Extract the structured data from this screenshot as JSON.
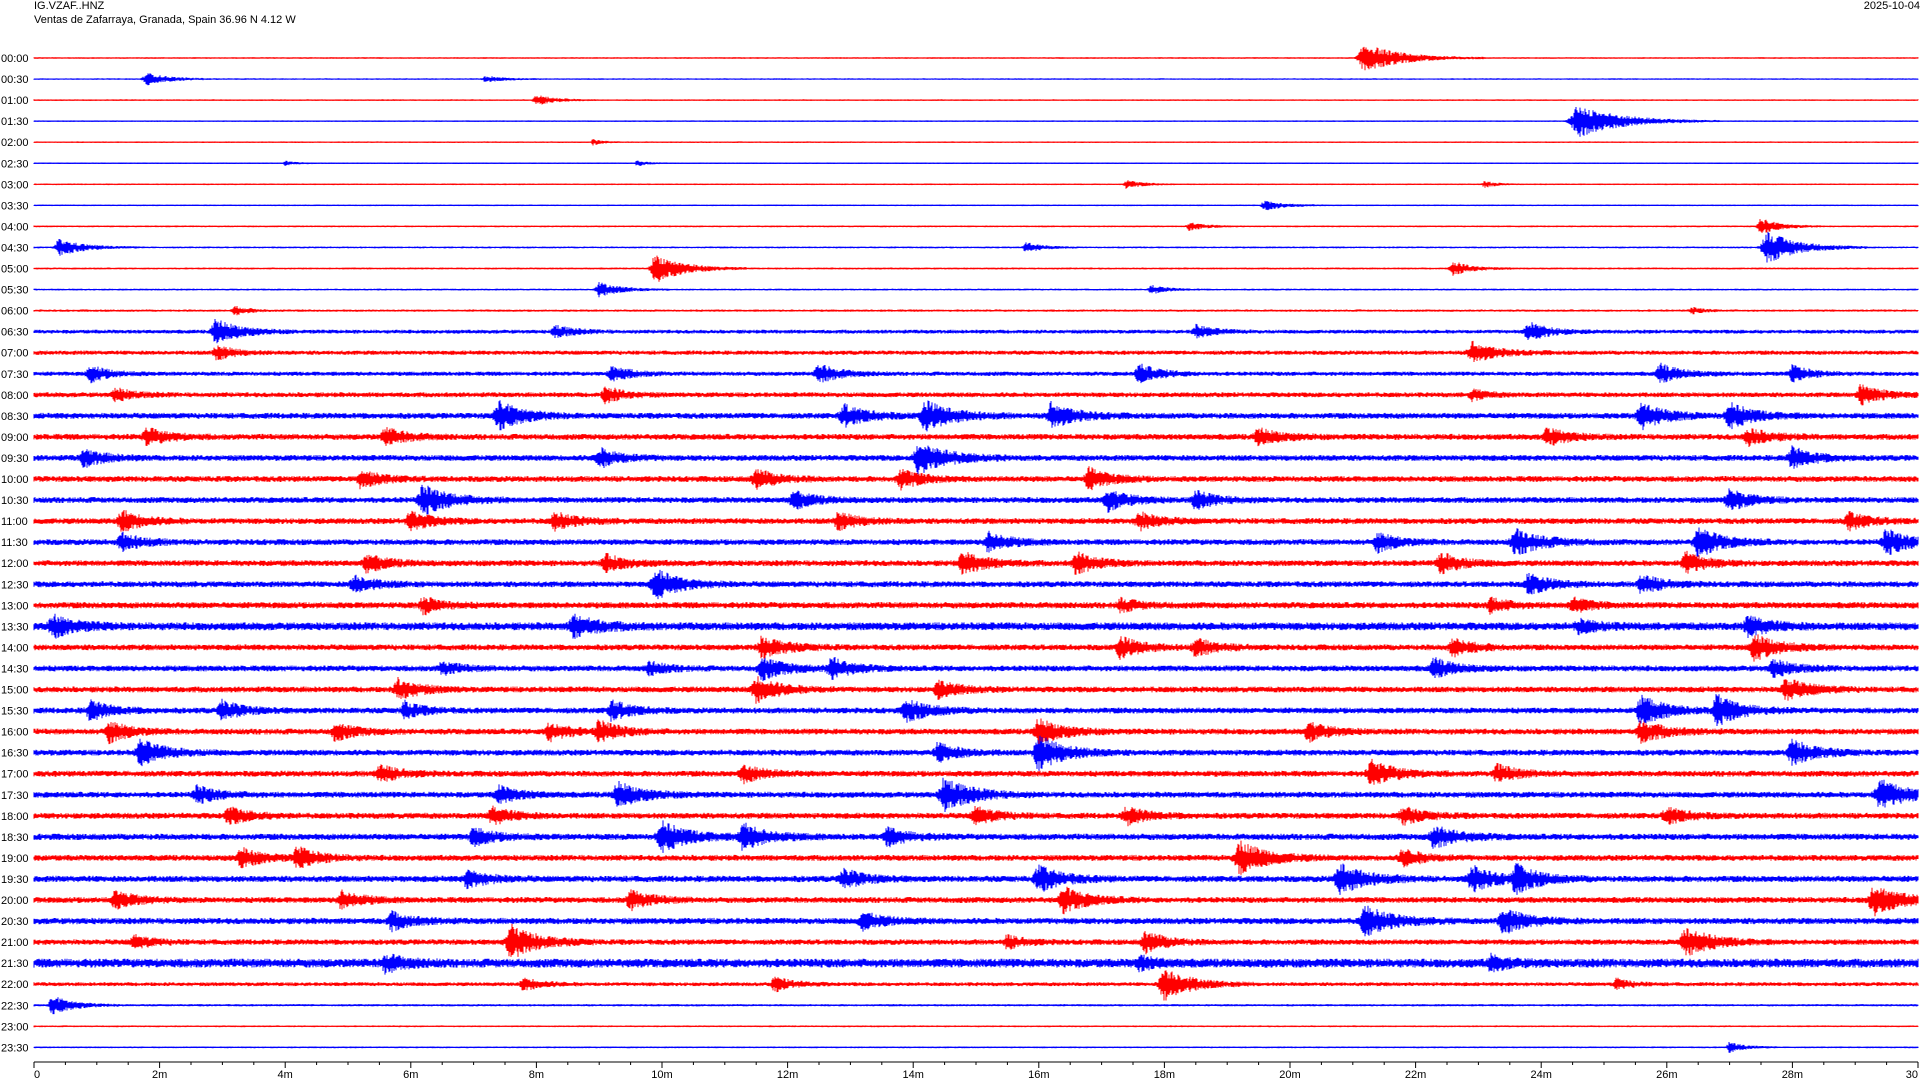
{
  "header": {
    "station": "IG.VZAF..HNZ",
    "location": "Ventas de Zafarraya, Granada, Spain  36.96 N 4.12 W",
    "date": "2025-10-04"
  },
  "colors": {
    "odd": "#ff0000",
    "even": "#0000ff",
    "axis": "#000000"
  },
  "chart_data": {
    "type": "line",
    "title": "IG.VZAF..HNZ",
    "subtitle": "Ventas de Zafarraya, Granada, Spain  36.96 N 4.12 W",
    "xlabel": "",
    "ylabel": "",
    "xlim": [
      0,
      30
    ],
    "x_ticks": [
      "0",
      "2m",
      "4m",
      "6m",
      "8m",
      "10m",
      "12m",
      "14m",
      "16m",
      "18m",
      "20m",
      "22m",
      "24m",
      "26m",
      "28m",
      "30"
    ],
    "rows": [
      {
        "label": "00:00",
        "noise": 0.8,
        "events": [
          [
            21.2,
            14,
            1.2
          ]
        ]
      },
      {
        "label": "00:30",
        "noise": 0.8,
        "events": [
          [
            1.8,
            6,
            0.7
          ],
          [
            7.2,
            3,
            0.6
          ]
        ]
      },
      {
        "label": "01:00",
        "noise": 0.8,
        "events": [
          [
            8.0,
            5,
            0.6
          ]
        ]
      },
      {
        "label": "01:30",
        "noise": 0.8,
        "events": [
          [
            24.6,
            16,
            1.4
          ]
        ]
      },
      {
        "label": "02:00",
        "noise": 0.8,
        "events": [
          [
            8.9,
            3,
            0.3
          ]
        ]
      },
      {
        "label": "02:30",
        "noise": 0.8,
        "events": [
          [
            9.6,
            3,
            0.3
          ],
          [
            4.0,
            2,
            0.3
          ]
        ]
      },
      {
        "label": "03:00",
        "noise": 0.8,
        "events": [
          [
            17.4,
            4,
            0.5
          ],
          [
            23.1,
            3,
            0.4
          ]
        ]
      },
      {
        "label": "03:30",
        "noise": 0.8,
        "events": [
          [
            19.6,
            5,
            0.6
          ]
        ]
      },
      {
        "label": "04:00",
        "noise": 0.9,
        "events": [
          [
            18.4,
            4,
            0.5
          ],
          [
            27.5,
            8,
            0.6
          ]
        ]
      },
      {
        "label": "04:30",
        "noise": 1.0,
        "events": [
          [
            0.4,
            8,
            0.8
          ],
          [
            15.8,
            5,
            0.5
          ],
          [
            27.6,
            16,
            1.0
          ]
        ]
      },
      {
        "label": "05:00",
        "noise": 1.0,
        "events": [
          [
            9.9,
            14,
            0.9
          ],
          [
            22.6,
            7,
            0.6
          ]
        ]
      },
      {
        "label": "05:30",
        "noise": 1.0,
        "events": [
          [
            9.0,
            7,
            0.7
          ],
          [
            17.8,
            4,
            0.5
          ]
        ]
      },
      {
        "label": "06:00",
        "noise": 1.2,
        "events": [
          [
            3.2,
            4,
            0.5
          ],
          [
            26.4,
            3,
            0.4
          ]
        ]
      },
      {
        "label": "06:30",
        "noise": 2.0,
        "events": [
          [
            2.9,
            12,
            0.8
          ],
          [
            8.3,
            6,
            0.6
          ],
          [
            18.5,
            6,
            0.6
          ],
          [
            23.8,
            9,
            0.7
          ]
        ]
      },
      {
        "label": "07:00",
        "noise": 2.2,
        "events": [
          [
            2.9,
            7,
            0.6
          ],
          [
            22.9,
            10,
            0.8
          ]
        ]
      },
      {
        "label": "07:30",
        "noise": 2.2,
        "events": [
          [
            0.9,
            8,
            0.6
          ],
          [
            9.2,
            8,
            0.6
          ],
          [
            12.5,
            9,
            0.7
          ],
          [
            17.6,
            9,
            0.7
          ],
          [
            25.9,
            9,
            0.7
          ],
          [
            28.0,
            8,
            0.6
          ]
        ]
      },
      {
        "label": "08:00",
        "noise": 2.5,
        "events": [
          [
            1.3,
            6,
            0.6
          ],
          [
            9.1,
            8,
            0.6
          ],
          [
            22.9,
            5,
            0.5
          ],
          [
            29.1,
            10,
            0.7
          ]
        ]
      },
      {
        "label": "08:30",
        "noise": 3.0,
        "events": [
          [
            7.4,
            14,
            0.8
          ],
          [
            12.9,
            10,
            0.8
          ],
          [
            14.2,
            14,
            0.9
          ],
          [
            16.2,
            12,
            0.8
          ],
          [
            25.6,
            12,
            0.8
          ],
          [
            27.0,
            12,
            0.8
          ]
        ]
      },
      {
        "label": "09:00",
        "noise": 3.0,
        "events": [
          [
            1.8,
            8,
            0.7
          ],
          [
            5.6,
            8,
            0.7
          ],
          [
            19.5,
            8,
            0.7
          ],
          [
            24.1,
            8,
            0.7
          ],
          [
            27.3,
            8,
            0.7
          ]
        ]
      },
      {
        "label": "09:30",
        "noise": 3.0,
        "events": [
          [
            0.8,
            8,
            0.7
          ],
          [
            9.0,
            9,
            0.7
          ],
          [
            14.1,
            16,
            0.9
          ],
          [
            28.0,
            10,
            0.7
          ]
        ]
      },
      {
        "label": "10:00",
        "noise": 3.0,
        "events": [
          [
            5.2,
            8,
            0.7
          ],
          [
            11.5,
            9,
            0.7
          ],
          [
            13.8,
            9,
            0.7
          ],
          [
            16.8,
            10,
            0.7
          ]
        ]
      },
      {
        "label": "10:30",
        "noise": 3.0,
        "events": [
          [
            6.2,
            14,
            0.9
          ],
          [
            12.1,
            8,
            0.7
          ],
          [
            17.1,
            10,
            0.7
          ],
          [
            18.5,
            8,
            0.7
          ],
          [
            27.0,
            10,
            0.7
          ]
        ]
      },
      {
        "label": "11:00",
        "noise": 3.0,
        "events": [
          [
            1.4,
            10,
            0.7
          ],
          [
            6.0,
            9,
            0.7
          ],
          [
            8.3,
            8,
            0.7
          ],
          [
            12.8,
            8,
            0.7
          ],
          [
            17.6,
            8,
            0.7
          ],
          [
            28.9,
            8,
            0.7
          ]
        ]
      },
      {
        "label": "11:30",
        "noise": 3.0,
        "events": [
          [
            1.4,
            8,
            0.7
          ],
          [
            15.2,
            9,
            0.7
          ],
          [
            21.4,
            9,
            0.7
          ],
          [
            23.6,
            12,
            0.9
          ],
          [
            26.5,
            14,
            0.8
          ],
          [
            29.5,
            12,
            0.8
          ]
        ]
      },
      {
        "label": "12:00",
        "noise": 3.0,
        "events": [
          [
            5.3,
            8,
            0.7
          ],
          [
            9.1,
            8,
            0.7
          ],
          [
            14.8,
            10,
            0.8
          ],
          [
            16.6,
            10,
            0.7
          ],
          [
            22.4,
            10,
            0.7
          ],
          [
            26.3,
            10,
            0.7
          ]
        ]
      },
      {
        "label": "12:30",
        "noise": 3.0,
        "events": [
          [
            5.1,
            8,
            0.7
          ],
          [
            9.9,
            14,
            0.8
          ],
          [
            23.8,
            10,
            0.7
          ],
          [
            25.6,
            9,
            0.7
          ]
        ]
      },
      {
        "label": "13:00",
        "noise": 3.2,
        "events": [
          [
            6.2,
            8,
            0.6
          ],
          [
            17.3,
            6,
            0.6
          ],
          [
            23.2,
            7,
            0.6
          ],
          [
            24.5,
            7,
            0.6
          ]
        ]
      },
      {
        "label": "13:30",
        "noise": 4.0,
        "events": [
          [
            0.3,
            10,
            0.7
          ],
          [
            8.6,
            10,
            0.8
          ],
          [
            24.6,
            6,
            0.6
          ],
          [
            27.3,
            9,
            0.7
          ]
        ]
      },
      {
        "label": "14:00",
        "noise": 3.0,
        "events": [
          [
            11.6,
            10,
            0.8
          ],
          [
            17.3,
            10,
            0.7
          ],
          [
            18.5,
            8,
            0.7
          ],
          [
            22.6,
            8,
            0.7
          ],
          [
            27.4,
            12,
            0.8
          ]
        ]
      },
      {
        "label": "14:30",
        "noise": 3.0,
        "events": [
          [
            6.5,
            6,
            0.6
          ],
          [
            9.8,
            6,
            0.6
          ],
          [
            11.6,
            10,
            0.8
          ],
          [
            12.7,
            10,
            0.7
          ],
          [
            22.3,
            9,
            0.7
          ],
          [
            27.7,
            8,
            0.7
          ]
        ]
      },
      {
        "label": "15:00",
        "noise": 3.0,
        "events": [
          [
            5.8,
            10,
            0.7
          ],
          [
            11.5,
            12,
            0.8
          ],
          [
            14.4,
            8,
            0.7
          ],
          [
            27.9,
            10,
            0.8
          ]
        ]
      },
      {
        "label": "15:30",
        "noise": 3.0,
        "events": [
          [
            0.9,
            9,
            0.7
          ],
          [
            3.0,
            9,
            0.7
          ],
          [
            5.9,
            8,
            0.6
          ],
          [
            9.2,
            9,
            0.7
          ],
          [
            13.9,
            10,
            0.8
          ],
          [
            25.6,
            14,
            0.8
          ],
          [
            26.8,
            14,
            0.8
          ]
        ]
      },
      {
        "label": "16:00",
        "noise": 3.0,
        "events": [
          [
            1.2,
            10,
            0.7
          ],
          [
            4.8,
            8,
            0.7
          ],
          [
            8.2,
            9,
            0.7
          ],
          [
            9.0,
            10,
            0.7
          ],
          [
            16.0,
            12,
            0.8
          ],
          [
            20.3,
            9,
            0.7
          ],
          [
            25.6,
            10,
            0.8
          ]
        ]
      },
      {
        "label": "16:30",
        "noise": 3.0,
        "events": [
          [
            1.7,
            12,
            0.8
          ],
          [
            14.4,
            9,
            0.7
          ],
          [
            16.0,
            16,
            0.9
          ],
          [
            28.0,
            12,
            0.8
          ]
        ]
      },
      {
        "label": "17:00",
        "noise": 3.0,
        "events": [
          [
            5.5,
            8,
            0.7
          ],
          [
            11.3,
            8,
            0.7
          ],
          [
            21.3,
            12,
            0.8
          ],
          [
            23.3,
            8,
            0.7
          ]
        ]
      },
      {
        "label": "17:30",
        "noise": 3.0,
        "events": [
          [
            2.6,
            8,
            0.7
          ],
          [
            7.4,
            8,
            0.7
          ],
          [
            9.3,
            12,
            0.8
          ],
          [
            14.5,
            16,
            0.9
          ],
          [
            29.4,
            14,
            0.9
          ]
        ]
      },
      {
        "label": "18:00",
        "noise": 3.0,
        "events": [
          [
            3.1,
            8,
            0.7
          ],
          [
            7.3,
            8,
            0.7
          ],
          [
            15.0,
            8,
            0.7
          ],
          [
            17.4,
            8,
            0.7
          ],
          [
            21.8,
            8,
            0.7
          ],
          [
            26.0,
            8,
            0.7
          ]
        ]
      },
      {
        "label": "18:30",
        "noise": 3.2,
        "events": [
          [
            7.0,
            8,
            0.7
          ],
          [
            10.0,
            14,
            0.9
          ],
          [
            11.3,
            12,
            0.8
          ],
          [
            13.6,
            8,
            0.7
          ],
          [
            22.3,
            10,
            0.8
          ]
        ]
      },
      {
        "label": "19:00",
        "noise": 3.0,
        "events": [
          [
            3.3,
            9,
            0.7
          ],
          [
            4.2,
            10,
            0.7
          ],
          [
            19.2,
            16,
            0.9
          ],
          [
            21.8,
            8,
            0.7
          ]
        ]
      },
      {
        "label": "19:30",
        "noise": 3.2,
        "events": [
          [
            6.9,
            8,
            0.7
          ],
          [
            12.9,
            9,
            0.7
          ],
          [
            16.0,
            12,
            0.8
          ],
          [
            20.8,
            14,
            0.9
          ],
          [
            22.9,
            12,
            0.8
          ],
          [
            23.6,
            12,
            0.8
          ]
        ]
      },
      {
        "label": "20:00",
        "noise": 3.0,
        "events": [
          [
            1.3,
            8,
            0.7
          ],
          [
            4.9,
            8,
            0.7
          ],
          [
            9.5,
            9,
            0.7
          ],
          [
            16.4,
            12,
            0.8
          ],
          [
            29.3,
            14,
            0.9
          ]
        ]
      },
      {
        "label": "20:30",
        "noise": 3.2,
        "events": [
          [
            5.7,
            8,
            0.7
          ],
          [
            13.2,
            8,
            0.7
          ],
          [
            21.2,
            14,
            0.9
          ],
          [
            23.4,
            12,
            0.8
          ]
        ]
      },
      {
        "label": "21:00",
        "noise": 2.8,
        "events": [
          [
            1.6,
            6,
            0.6
          ],
          [
            7.6,
            16,
            0.9
          ],
          [
            15.5,
            6,
            0.6
          ],
          [
            17.7,
            10,
            0.7
          ],
          [
            26.3,
            14,
            0.9
          ]
        ]
      },
      {
        "label": "21:30",
        "noise": 4.5,
        "events": [
          [
            5.6,
            8,
            0.6
          ],
          [
            23.2,
            6,
            0.6
          ],
          [
            17.6,
            6,
            0.5
          ]
        ]
      },
      {
        "label": "22:00",
        "noise": 2.0,
        "events": [
          [
            7.8,
            6,
            0.6
          ],
          [
            11.8,
            7,
            0.6
          ],
          [
            18.0,
            16,
            0.9
          ],
          [
            25.2,
            5,
            0.5
          ]
        ]
      },
      {
        "label": "22:30",
        "noise": 1.2,
        "events": [
          [
            0.3,
            9,
            0.7
          ]
        ]
      },
      {
        "label": "23:00",
        "noise": 0.9,
        "events": []
      },
      {
        "label": "23:30",
        "noise": 0.9,
        "events": [
          [
            27.0,
            5,
            0.5
          ]
        ]
      }
    ]
  }
}
